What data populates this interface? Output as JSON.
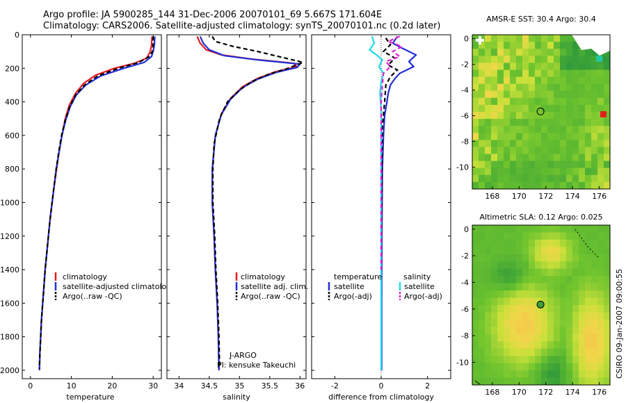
{
  "title": {
    "line1": "Argo profile: JA 5900285_144 31-Dec-2006 20070101_69 5.667S 171.604E",
    "line2": "Climatology: CARS2006. Satellite-adjusted climatology: synTS_20070101.nc (0.2d later)"
  },
  "colors": {
    "clim": "#e41a1c",
    "sat": "#1f2fd6",
    "argo": "#000000",
    "cyan": "#22d8e8",
    "magenta": "#e020d0"
  },
  "chart_data": [
    {
      "id": "temperature",
      "type": "line",
      "xlabel": "temperature",
      "xlim": [
        -2,
        32
      ],
      "ylim": [
        0,
        2050
      ],
      "xticks": [
        0,
        10,
        20,
        30
      ],
      "xtick_labels": [
        "0",
        "10",
        "20",
        "30"
      ],
      "yticks": [
        0,
        200,
        400,
        600,
        800,
        1000,
        1200,
        1400,
        1600,
        1800,
        2000
      ],
      "ytick_labels": [
        "0",
        "200",
        "400",
        "600",
        "800",
        "1000",
        "1200",
        "1400",
        "1600",
        "1800",
        "2000"
      ],
      "series": [
        {
          "name": "climatology",
          "color": "clim",
          "points": [
            [
              29.7,
              10
            ],
            [
              29.6,
              60
            ],
            [
              29.3,
              100
            ],
            [
              28.4,
              140
            ],
            [
              25.5,
              170
            ],
            [
              20.5,
              200
            ],
            [
              16,
              240
            ],
            [
              13,
              290
            ],
            [
              11,
              350
            ],
            [
              9.5,
              420
            ],
            [
              8.5,
              500
            ],
            [
              7.7,
              600
            ],
            [
              7,
              700
            ],
            [
              6.4,
              800
            ],
            [
              5.8,
              900
            ],
            [
              5.3,
              1000
            ],
            [
              4.8,
              1100
            ],
            [
              4.4,
              1200
            ],
            [
              4,
              1300
            ],
            [
              3.6,
              1400
            ],
            [
              3.3,
              1500
            ],
            [
              3,
              1600
            ],
            [
              2.7,
              1700
            ],
            [
              2.5,
              1800
            ],
            [
              2.3,
              1900
            ],
            [
              2.2,
              2000
            ]
          ]
        },
        {
          "name": "satellite-adjusted climatology",
          "color": "sat",
          "points": [
            [
              30.4,
              10
            ],
            [
              30.3,
              60
            ],
            [
              30,
              100
            ],
            [
              29.6,
              130
            ],
            [
              27.8,
              165
            ],
            [
              22.8,
              200
            ],
            [
              17.2,
              245
            ],
            [
              13.5,
              300
            ],
            [
              11.2,
              360
            ],
            [
              9.7,
              430
            ],
            [
              8.6,
              510
            ],
            [
              7.7,
              600
            ],
            [
              7,
              700
            ],
            [
              6.3,
              800
            ],
            [
              5.8,
              900
            ],
            [
              5.3,
              1000
            ],
            [
              4.8,
              1100
            ],
            [
              4.4,
              1200
            ],
            [
              4,
              1300
            ],
            [
              3.6,
              1400
            ],
            [
              3.3,
              1500
            ],
            [
              3,
              1600
            ],
            [
              2.7,
              1700
            ],
            [
              2.5,
              1800
            ],
            [
              2.3,
              1900
            ],
            [
              2.2,
              2000
            ]
          ]
        },
        {
          "name": "Argo(..raw -QC)",
          "color": "argo",
          "dash": true,
          "points": [
            [
              30,
              10
            ],
            [
              30,
              60
            ],
            [
              29.8,
              100
            ],
            [
              29,
              130
            ],
            [
              26.5,
              165
            ],
            [
              21.5,
              200
            ],
            [
              16.5,
              245
            ],
            [
              13.2,
              300
            ],
            [
              11,
              360
            ],
            [
              9.6,
              430
            ],
            [
              8.5,
              510
            ],
            [
              7.6,
              600
            ],
            [
              6.9,
              700
            ],
            [
              6.3,
              800
            ],
            [
              5.8,
              900
            ],
            [
              5.3,
              1000
            ],
            [
              4.8,
              1100
            ],
            [
              4.4,
              1200
            ],
            [
              4,
              1300
            ],
            [
              3.6,
              1400
            ],
            [
              3.3,
              1500
            ],
            [
              3,
              1600
            ],
            [
              2.7,
              1700
            ],
            [
              2.5,
              1800
            ],
            [
              2.3,
              1900
            ],
            [
              2.2,
              1990
            ]
          ]
        }
      ],
      "legend": {
        "entries": [
          {
            "label": "climatology",
            "color": "clim"
          },
          {
            "label": "satellite-adjusted climatology",
            "color": "sat"
          },
          {
            "label": "Argo(..raw -QC)",
            "color": "argo"
          }
        ]
      }
    },
    {
      "id": "salinity",
      "type": "line",
      "xlabel": "salinity",
      "xlim": [
        33.8,
        36.1
      ],
      "ylim": [
        0,
        2050
      ],
      "xticks": [
        34,
        34.5,
        35,
        35.5,
        36
      ],
      "xtick_labels": [
        "34",
        "34.5",
        "35",
        "35.5",
        "36"
      ],
      "series": [
        {
          "name": "climatology",
          "color": "clim",
          "points": [
            [
              34.3,
              10
            ],
            [
              34.35,
              50
            ],
            [
              34.45,
              90
            ],
            [
              34.7,
              120
            ],
            [
              35.2,
              145
            ],
            [
              35.9,
              170
            ],
            [
              35.95,
              190
            ],
            [
              35.6,
              220
            ],
            [
              35.3,
              260
            ],
            [
              35.05,
              310
            ],
            [
              34.85,
              380
            ],
            [
              34.7,
              470
            ],
            [
              34.6,
              600
            ],
            [
              34.55,
              800
            ],
            [
              34.55,
              1000
            ],
            [
              34.58,
              1200
            ],
            [
              34.6,
              1400
            ],
            [
              34.63,
              1600
            ],
            [
              34.65,
              1800
            ],
            [
              34.66,
              2000
            ]
          ]
        },
        {
          "name": "satellite adj. clim.",
          "color": "sat",
          "points": [
            [
              34.35,
              10
            ],
            [
              34.4,
              50
            ],
            [
              34.5,
              90
            ],
            [
              34.75,
              125
            ],
            [
              35.3,
              150
            ],
            [
              36,
              175
            ],
            [
              35.95,
              195
            ],
            [
              35.6,
              225
            ],
            [
              35.3,
              265
            ],
            [
              35.05,
              315
            ],
            [
              34.85,
              385
            ],
            [
              34.7,
              475
            ],
            [
              34.6,
              600
            ],
            [
              34.55,
              800
            ],
            [
              34.55,
              1000
            ],
            [
              34.58,
              1200
            ],
            [
              34.6,
              1400
            ],
            [
              34.63,
              1600
            ],
            [
              34.65,
              1800
            ],
            [
              34.66,
              2000
            ]
          ]
        },
        {
          "name": "Argo(..raw -QC)",
          "color": "argo",
          "dash": true,
          "points": [
            [
              34.55,
              10
            ],
            [
              34.6,
              40
            ],
            [
              34.9,
              70
            ],
            [
              35.3,
              100
            ],
            [
              35.65,
              130
            ],
            [
              36.05,
              165
            ],
            [
              35.8,
              200
            ],
            [
              35.45,
              240
            ],
            [
              35.2,
              280
            ],
            [
              35,
              330
            ],
            [
              34.8,
              400
            ],
            [
              34.67,
              500
            ],
            [
              34.58,
              650
            ],
            [
              34.56,
              800
            ],
            [
              34.56,
              1000
            ],
            [
              34.59,
              1200
            ],
            [
              34.61,
              1400
            ],
            [
              34.64,
              1600
            ],
            [
              34.66,
              1800
            ],
            [
              34.67,
              1990
            ]
          ]
        }
      ],
      "legend": {
        "entries": [
          {
            "label": "climatology",
            "color": "clim"
          },
          {
            "label": "satellite adj. clim.",
            "color": "sat"
          },
          {
            "label": "Argo(..raw -QC)",
            "color": "argo"
          }
        ]
      },
      "annotations": [
        "J-ARGO",
        "PI: kensuke Takeuchi"
      ]
    },
    {
      "id": "difference",
      "type": "line",
      "xlabel": "difference from climatology",
      "xlim": [
        -3,
        3
      ],
      "ylim": [
        0,
        2050
      ],
      "xticks": [
        -2,
        0,
        2
      ],
      "xtick_labels": [
        "-2",
        "0",
        "2"
      ],
      "series": [
        {
          "name": "temperature satellite",
          "color": "sat",
          "points": [
            [
              0.7,
              10
            ],
            [
              0.5,
              50
            ],
            [
              0.9,
              80
            ],
            [
              1.5,
              120
            ],
            [
              1.2,
              160
            ],
            [
              1.4,
              190
            ],
            [
              0.8,
              230
            ],
            [
              0.6,
              260
            ],
            [
              0.4,
              300
            ],
            [
              0.3,
              350
            ],
            [
              0.25,
              400
            ],
            [
              0.15,
              480
            ],
            [
              0.1,
              600
            ],
            [
              0.05,
              800
            ],
            [
              0.03,
              1200
            ],
            [
              0.02,
              1600
            ],
            [
              0.02,
              2000
            ]
          ]
        },
        {
          "name": "temperature Argo(-adj)",
          "color": "argo",
          "dash": true,
          "points": [
            [
              0.2,
              20
            ],
            [
              0.4,
              60
            ],
            [
              0.1,
              100
            ],
            [
              0.6,
              140
            ],
            [
              0.3,
              180
            ],
            [
              0.7,
              210
            ],
            [
              0.4,
              250
            ],
            [
              0.2,
              300
            ],
            [
              0.15,
              400
            ],
            [
              0.05,
              550
            ],
            [
              0,
              1400
            ]
          ]
        },
        {
          "name": "salinity satellite",
          "color": "cyan",
          "points": [
            [
              -0.4,
              10
            ],
            [
              -0.3,
              50
            ],
            [
              -0.5,
              90
            ],
            [
              -0.2,
              120
            ],
            [
              0.05,
              150
            ],
            [
              -0.1,
              190
            ],
            [
              0.1,
              230
            ],
            [
              0,
              280
            ],
            [
              -0.05,
              350
            ],
            [
              0,
              450
            ],
            [
              0,
              2000
            ]
          ]
        },
        {
          "name": "salinity Argo(-adj)",
          "color": "magenta",
          "dash": true,
          "points": [
            [
              0.8,
              10
            ],
            [
              0.3,
              40
            ],
            [
              0.9,
              70
            ],
            [
              0.5,
              100
            ],
            [
              0.8,
              130
            ],
            [
              0.2,
              160
            ],
            [
              0.4,
              190
            ],
            [
              0.1,
              230
            ],
            [
              0.05,
              300
            ],
            [
              0,
              400
            ],
            [
              0,
              1400
            ]
          ]
        }
      ],
      "legend": {
        "headers": [
          "temperature",
          "salinity"
        ],
        "entries": [
          {
            "label": "satellite",
            "color": "sat"
          },
          {
            "label": "Argo(-adj)",
            "color": "argo"
          },
          {
            "label": "satellite",
            "color": "cyan"
          },
          {
            "label": "Argo(-adj)",
            "color": "magenta"
          }
        ]
      }
    },
    {
      "id": "sst_map",
      "type": "heatmap",
      "title": "AMSR-E SST: 30.4 Argo: 30.4",
      "xlim": [
        166.5,
        176.8
      ],
      "ylim": [
        -11.7,
        0.3
      ],
      "xticks": [
        168,
        170,
        172,
        174,
        176
      ],
      "xtick_labels": [
        "168",
        "170",
        "172",
        "174",
        "176"
      ],
      "yticks": [
        0,
        -2,
        -4,
        -6,
        -8,
        -10
      ],
      "ytick_labels": [
        "0",
        "-2",
        "-4",
        "-6",
        "-8",
        "-10"
      ],
      "marker": {
        "lon": 171.604,
        "lat": -5.667
      }
    },
    {
      "id": "sla_map",
      "type": "heatmap",
      "title": "Altimetric SLA: 0.12 Argo: 0.025",
      "xlim": [
        166.5,
        176.8
      ],
      "ylim": [
        -11.7,
        0.3
      ],
      "xticks": [
        168,
        170,
        172,
        174,
        176
      ],
      "xtick_labels": [
        "168",
        "170",
        "172",
        "174",
        "176"
      ],
      "yticks": [
        0,
        -2,
        -4,
        -6,
        -8,
        -10
      ],
      "ytick_labels": [
        "0",
        "-2",
        "-4",
        "-6",
        "-8",
        "-10"
      ],
      "marker": {
        "lon": 171.604,
        "lat": -5.667
      }
    }
  ],
  "footer": {
    "stamp": "CSIRO 09-Jan-2007 09:00:55"
  }
}
